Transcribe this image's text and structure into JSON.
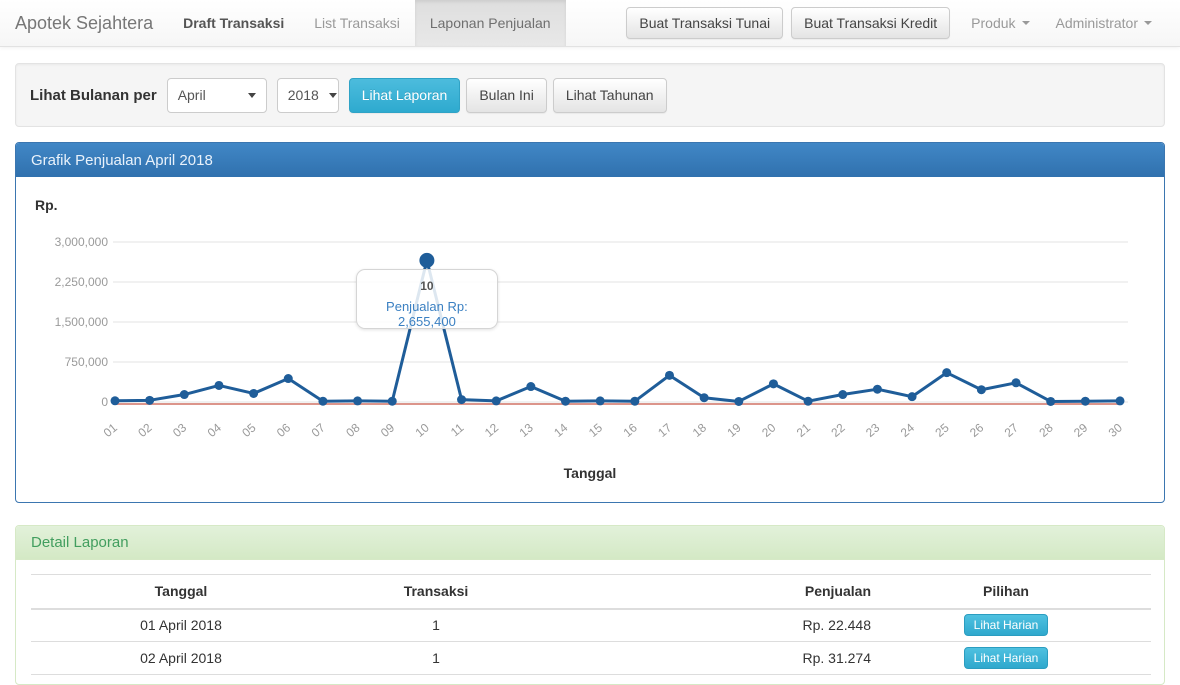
{
  "navbar": {
    "brand": "Apotek Sejahtera",
    "items": [
      {
        "label": "Draft Transaksi"
      },
      {
        "label": "List Transaksi"
      },
      {
        "label": "Laponan Penjualan"
      }
    ],
    "actions": [
      {
        "label": "Buat Transaksi Tunai"
      },
      {
        "label": "Buat Transaksi Kredit"
      }
    ],
    "dropdowns": [
      {
        "label": "Produk"
      },
      {
        "label": "Administrator"
      }
    ]
  },
  "filter_bar": {
    "label": "Lihat Bulanan per",
    "month_selected": "April",
    "year_selected": "2018",
    "view_report_button": "Lihat Laporan",
    "this_month_button": "Bulan Ini",
    "yearly_button": "Lihat Tahunan"
  },
  "sales_chart_panel": {
    "title": "Grafik Penjualan April 2018",
    "y_axis_unit": "Rp.",
    "x_axis_title": "Tanggal"
  },
  "chart_data": {
    "type": "line",
    "title": "Grafik Penjualan April 2018",
    "xlabel": "Tanggal",
    "ylabel": "Rp.",
    "x": [
      "01",
      "02",
      "03",
      "04",
      "05",
      "06",
      "07",
      "08",
      "09",
      "10",
      "11",
      "12",
      "13",
      "14",
      "15",
      "16",
      "17",
      "18",
      "19",
      "20",
      "21",
      "22",
      "23",
      "24",
      "25",
      "26",
      "27",
      "28",
      "29",
      "30"
    ],
    "series": [
      {
        "name": "Penjualan",
        "color": "#1f5d99",
        "values": [
          22448,
          31274,
          140000,
          310000,
          160000,
          440000,
          15000,
          20000,
          15000,
          2655400,
          45000,
          20000,
          290000,
          15000,
          20000,
          15000,
          500000,
          80000,
          10000,
          340000,
          15000,
          140000,
          240000,
          100000,
          550000,
          230000,
          360000,
          10000,
          15000,
          20000
        ]
      }
    ],
    "baseline": {
      "value": 0,
      "color": "#dc958b"
    },
    "ylim": [
      0,
      3000000
    ],
    "yticks": [
      0,
      750000,
      1500000,
      2250000,
      3000000
    ],
    "ytick_labels": [
      "0",
      "750,000",
      "1,500,000",
      "2,250,000",
      "3,000,000"
    ],
    "grid": "horizontal",
    "legend": "none",
    "highlight_index": 9,
    "tooltip": {
      "day": "10",
      "value_text": "Penjualan Rp: 2,655,400"
    }
  },
  "detail_panel": {
    "title": "Detail Laporan",
    "table": {
      "columns": [
        "Tanggal",
        "Transaksi",
        "Penjualan",
        "Pilihan"
      ],
      "rows": [
        {
          "tanggal": "01 April 2018",
          "transaksi": "1",
          "penjualan": "Rp. 22.448",
          "action_label": "Lihat Harian"
        },
        {
          "tanggal": "02 April 2018",
          "transaksi": "1",
          "penjualan": "Rp. 31.274",
          "action_label": "Lihat Harian"
        }
      ]
    }
  },
  "colors": {
    "primary_header_blue": "#3a7cba",
    "accent_info_cyan": "#3ab3da",
    "line_series_blue": "#1f5d99",
    "baseline_red": "#dc958b",
    "success_green": "#429e5f"
  }
}
